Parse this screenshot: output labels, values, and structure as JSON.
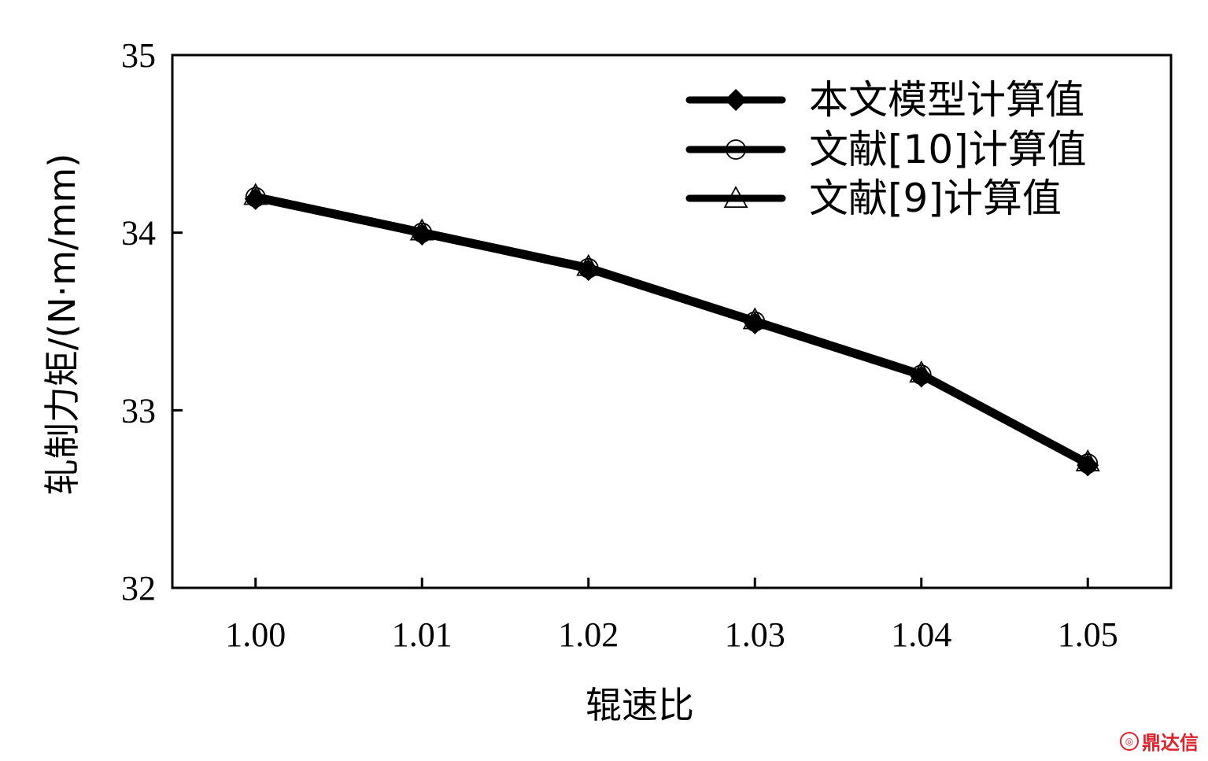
{
  "chart_data": {
    "type": "line",
    "xlabel": "辊速比",
    "ylabel": "轧制力矩/(N·m/mm)",
    "x": [
      1.0,
      1.01,
      1.02,
      1.03,
      1.04,
      1.05
    ],
    "x_tick_labels": [
      "1.00",
      "1.01",
      "1.02",
      "1.03",
      "1.04",
      "1.05"
    ],
    "y_tick_labels": [
      "32",
      "33",
      "34",
      "35"
    ],
    "y_ticks": [
      32,
      33,
      34,
      35
    ],
    "xlim": [
      0.995,
      1.055
    ],
    "ylim": [
      32,
      35
    ],
    "grid": false,
    "legend_position": "top-right",
    "series": [
      {
        "name": "本文模型计算值",
        "marker": "diamond-filled",
        "values": [
          34.19,
          33.99,
          33.79,
          33.49,
          33.19,
          32.69
        ]
      },
      {
        "name": "文献[10]计算值",
        "marker": "circle-open",
        "values": [
          34.2,
          34.0,
          33.8,
          33.5,
          33.2,
          32.7
        ]
      },
      {
        "name": "文献[9]计算值",
        "marker": "triangle-open",
        "values": [
          34.21,
          34.01,
          33.81,
          33.51,
          33.21,
          32.71
        ]
      }
    ],
    "colors": {
      "line": "#000000",
      "marker_fill": "#ffffff"
    }
  },
  "watermark": {
    "text": "鼎达信",
    "icon": "brand-seal-icon"
  }
}
